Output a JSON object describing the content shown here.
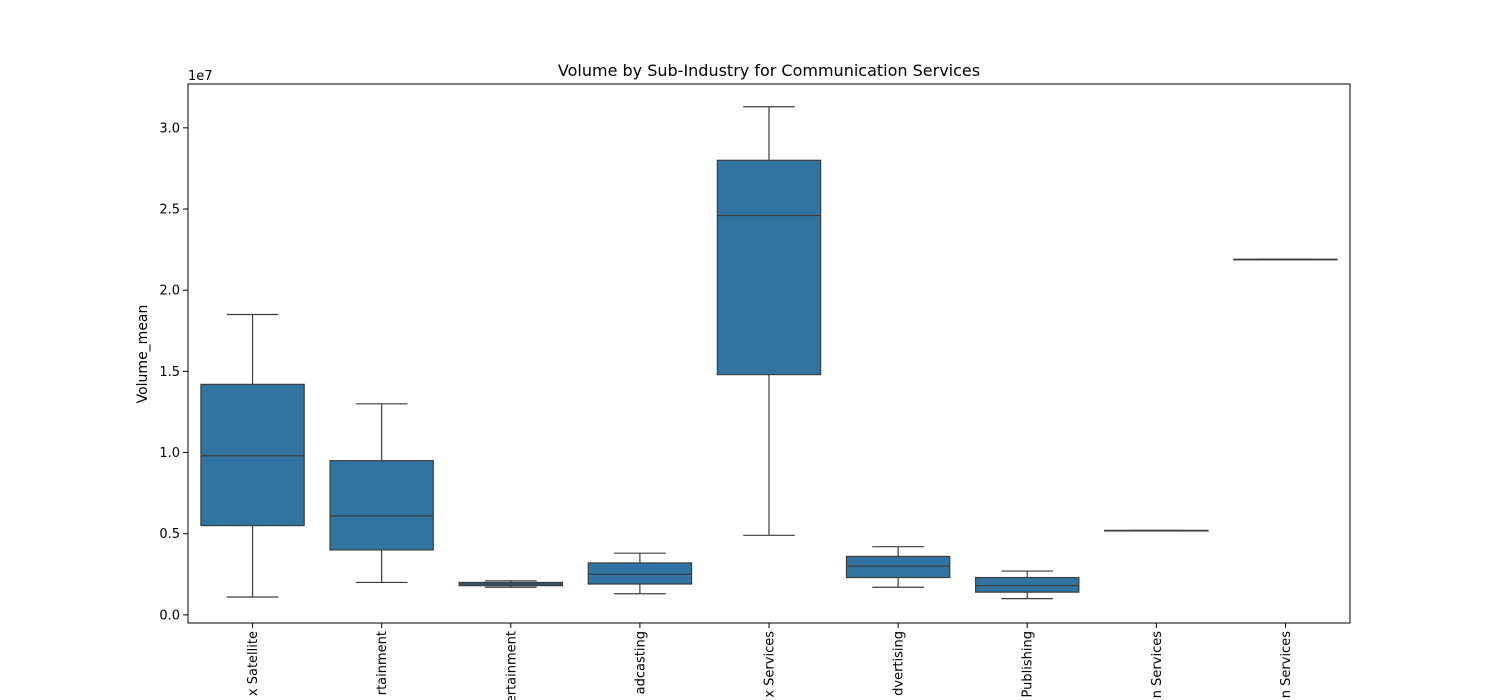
{
  "chart_data": {
    "type": "box",
    "title": "Volume by Sub-Industry for Communication Services",
    "xlabel": "",
    "ylabel": "Volume_mean",
    "y_offset_text": "1e7",
    "ylim": [
      -0.05,
      3.27
    ],
    "y_ticks": [
      {
        "value": 0.0,
        "label": "0.0"
      },
      {
        "value": 0.5,
        "label": "0.5"
      },
      {
        "value": 1.0,
        "label": "1.0"
      },
      {
        "value": 1.5,
        "label": "1.5"
      },
      {
        "value": 2.0,
        "label": "2.0"
      },
      {
        "value": 2.5,
        "label": "2.5"
      },
      {
        "value": 3.0,
        "label": "3.0"
      }
    ],
    "categories": [
      "x Satellite",
      "rtainment",
      "ertainment",
      "adcasting",
      "x Services",
      "dvertising",
      "Publishing",
      "n Services",
      "n Services"
    ],
    "boxes": [
      {
        "whisker_low": 0.11,
        "q1": 0.55,
        "median": 0.98,
        "q3": 1.42,
        "whisker_high": 1.85
      },
      {
        "whisker_low": 0.2,
        "q1": 0.4,
        "median": 0.61,
        "q3": 0.95,
        "whisker_high": 1.3
      },
      {
        "whisker_low": 0.17,
        "q1": 0.18,
        "median": 0.19,
        "q3": 0.2,
        "whisker_high": 0.21
      },
      {
        "whisker_low": 0.13,
        "q1": 0.19,
        "median": 0.25,
        "q3": 0.32,
        "whisker_high": 0.38
      },
      {
        "whisker_low": 0.49,
        "q1": 1.48,
        "median": 2.46,
        "q3": 2.8,
        "whisker_high": 3.13
      },
      {
        "whisker_low": 0.17,
        "q1": 0.23,
        "median": 0.3,
        "q3": 0.36,
        "whisker_high": 0.42
      },
      {
        "whisker_low": 0.1,
        "q1": 0.14,
        "median": 0.18,
        "q3": 0.23,
        "whisker_high": 0.27
      },
      {
        "whisker_low": 0.52,
        "q1": 0.52,
        "median": 0.52,
        "q3": 0.52,
        "whisker_high": 0.52
      },
      {
        "whisker_low": 2.19,
        "q1": 2.19,
        "median": 2.19,
        "q3": 2.19,
        "whisker_high": 2.19
      }
    ],
    "colors": {
      "box_fill": "#3274a1",
      "line": "#3d3d3d",
      "axis": "#000000"
    },
    "grid": false
  }
}
